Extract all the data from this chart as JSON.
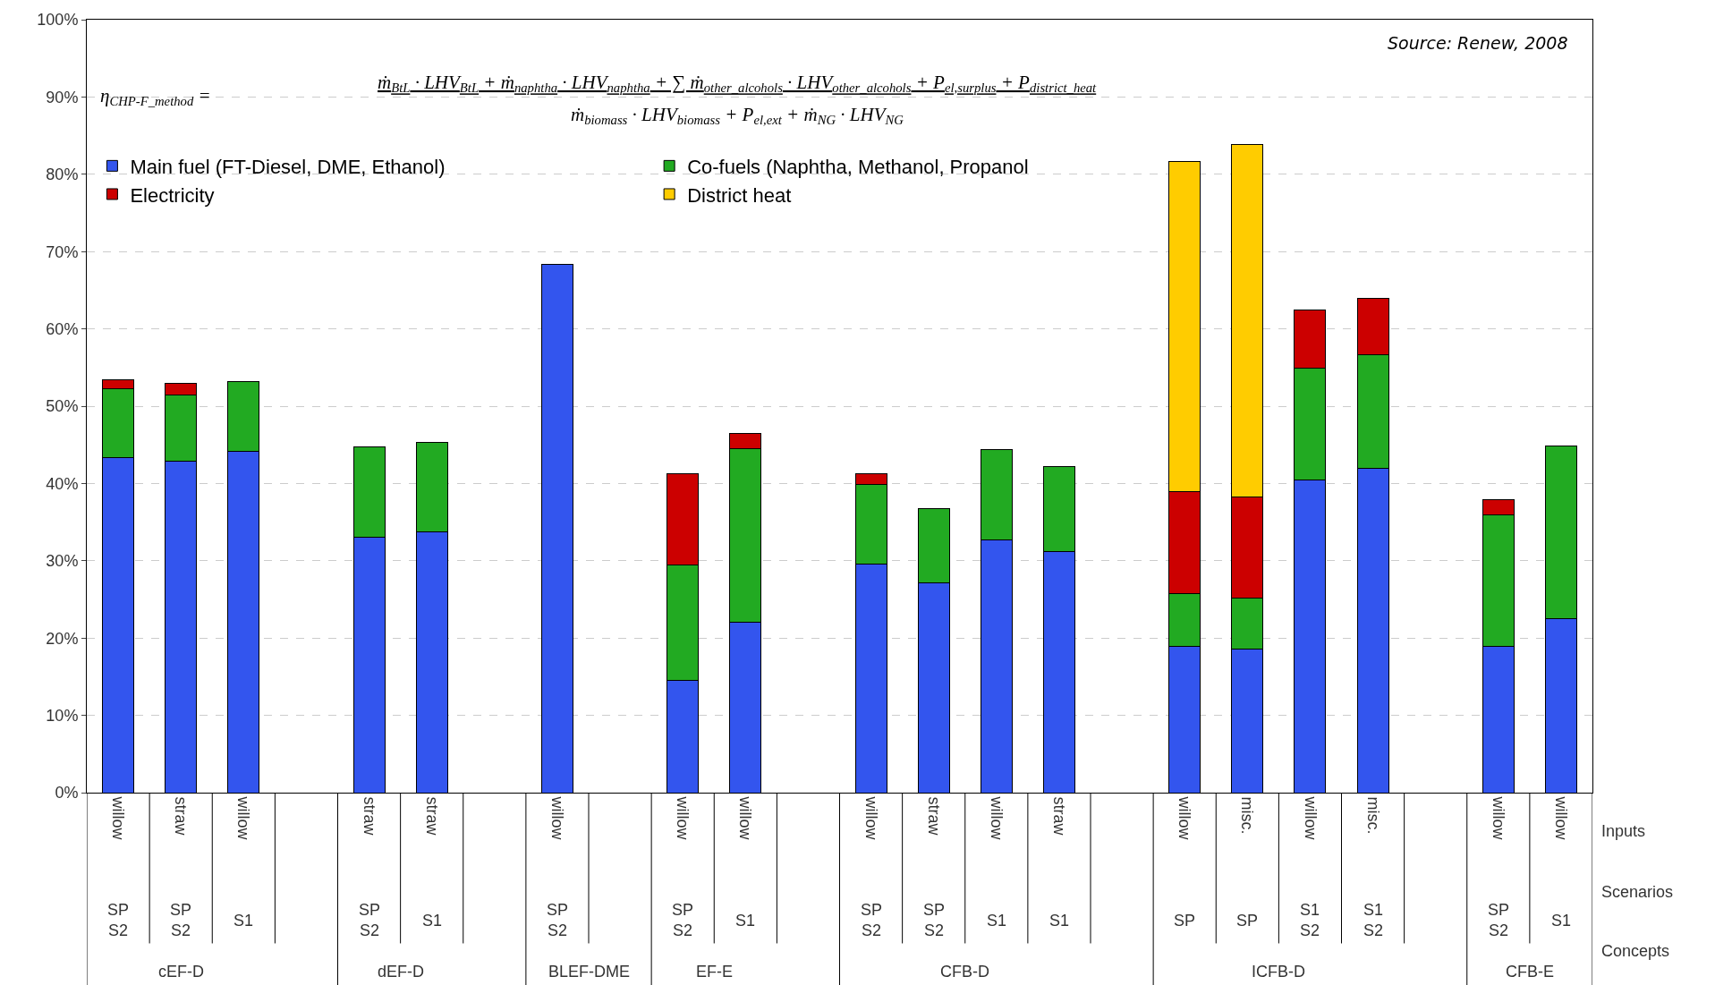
{
  "chart_data": {
    "type": "bar",
    "stacked": true,
    "categories": [
      "willow",
      "straw",
      "willow",
      null,
      "straw",
      "straw",
      null,
      "willow",
      null,
      "willow",
      "willow",
      null,
      "willow",
      "straw",
      "willow",
      "straw",
      null,
      "willow",
      "misc.",
      "willow",
      "misc.",
      null,
      "willow",
      "willow"
    ],
    "series": [
      {
        "name": "Main fuel (FT-Diesel, DME, Ethanol)",
        "color": "#3355ee",
        "values": [
          43.4,
          42.9,
          44.2,
          null,
          33.1,
          33.7,
          null,
          68.3,
          null,
          14.5,
          22.0,
          null,
          29.6,
          27.1,
          32.7,
          31.2,
          null,
          18.9,
          18.6,
          40.5,
          41.9,
          null,
          18.9,
          22.5
        ]
      },
      {
        "name": "Co-fuels (Naphtha, Methanol, Propanol",
        "color": "#22aa22",
        "values": [
          8.8,
          8.6,
          9.0,
          null,
          11.6,
          11.6,
          null,
          null,
          null,
          14.9,
          22.5,
          null,
          10.3,
          9.6,
          11.7,
          11.0,
          null,
          6.8,
          6.6,
          14.4,
          14.7,
          null,
          17.0,
          22.4
        ]
      },
      {
        "name": "Electricity",
        "color": "#cc0000",
        "values": [
          1.2,
          1.5,
          null,
          null,
          null,
          null,
          null,
          null,
          null,
          11.9,
          2.0,
          null,
          1.4,
          null,
          null,
          null,
          null,
          13.2,
          13.1,
          7.6,
          7.3,
          null,
          2.0,
          null
        ]
      },
      {
        "name": "District heat",
        "color": "#ffcc00",
        "values": [
          null,
          null,
          null,
          null,
          null,
          null,
          null,
          null,
          null,
          null,
          null,
          null,
          null,
          null,
          null,
          null,
          null,
          42.7,
          45.5,
          null,
          null,
          null,
          null,
          null
        ]
      }
    ],
    "ylim": [
      0,
      100
    ],
    "yticks": [
      {
        "value": 0,
        "label": "0%"
      },
      {
        "value": 10,
        "label": "10%"
      },
      {
        "value": 20,
        "label": "20%"
      },
      {
        "value": 30,
        "label": "30%"
      },
      {
        "value": 40,
        "label": "40%"
      },
      {
        "value": 50,
        "label": "50%"
      },
      {
        "value": 60,
        "label": "60%"
      },
      {
        "value": 70,
        "label": "70%"
      },
      {
        "value": 80,
        "label": "80%"
      },
      {
        "value": 90,
        "label": "90%"
      },
      {
        "value": 100,
        "label": "100%"
      }
    ],
    "grid": "y",
    "legend": "top left",
    "annotations": [
      "Source: Renew, 2008",
      "η$_{CHP-F_method}$ =",
      "ṁ$_{BtL}$ · LHV$_{BtL}$ + ṁ$_{naphtha}$ · LHV$_{naphtha}$ + ∑ ṁ$_{other_alcohols}$ · LHV$_{other_alcohols}$ + P$_{el,surplus}$ + P$_{district_heat}$",
      "ṁ$_{biomass}$ · LHV$_{biomass}$ + P$_{el,ext}$ + ṁ$_{NG}$ · LHV$_{NG}$",
      "Inputs",
      "Scenarios",
      "Concepts",
      "SP\nS2",
      "SP\nS2",
      "S1",
      "SP\nS2",
      "S1",
      "SP\nS2",
      "SP\nS2",
      "S1",
      "SP\nS2",
      "SP\nS2",
      "S1",
      "S1",
      "SP",
      "SP",
      "S1\nS2",
      "S1\nS2",
      "SP\nS2",
      "S1",
      "cEF-D",
      "dEF-D",
      "BLEF-DME",
      "EF-E",
      "CFB-D",
      "ICFB-D",
      "CFB-E"
    ]
  }
}
